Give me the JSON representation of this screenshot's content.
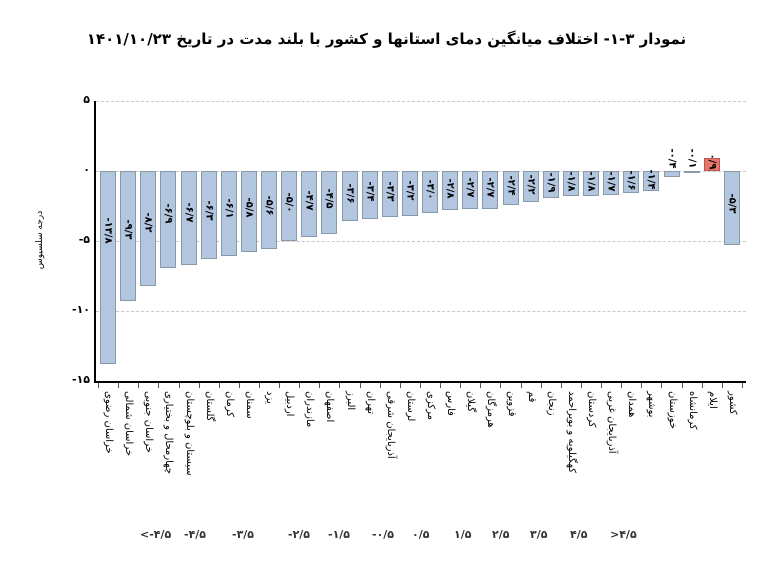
{
  "chart_data": {
    "type": "bar",
    "title": "نمودار ۳-۱- اختلاف میانگین دمای استانها و کشور با بلند مدت در تاریخ ۱۴۰۱/۱۰/۲۳",
    "xlabel": "",
    "ylabel": "درجه سلسیوس",
    "ylim": [
      -15,
      5
    ],
    "yticks": [
      5,
      0,
      -5,
      -10,
      -15
    ],
    "ytick_labels": [
      "۵",
      "۰",
      "-۵",
      "-۱۰",
      "-۱۵"
    ],
    "grid": true,
    "categories": [
      "خراسان رضوی",
      "خراسان شمالی",
      "خراسان جنوبی",
      "چهارمحال و بختیاری",
      "سیستان و بلوچستان",
      "گلستان",
      "کرمان",
      "سمنان",
      "یزد",
      "اردبیل",
      "مازندران",
      "اصفهان",
      "البرز",
      "تهران",
      "آذربایجان شرقی",
      "لرستان",
      "مرکزی",
      "فارس",
      "گیلان",
      "هرمزگان",
      "قزوین",
      "قم",
      "زنجان",
      "کهگیلویه و بویراحمد",
      "کردستان",
      "آذربایجان غربی",
      "همدان",
      "بوشهر",
      "خوزستان",
      "کرمانشاه",
      "ایلام",
      "کشور"
    ],
    "values": [
      -13.8,
      -9.3,
      -8.2,
      -6.9,
      -6.7,
      -6.3,
      -6.1,
      -5.8,
      -5.6,
      -5.0,
      -4.7,
      -4.5,
      -3.6,
      -3.4,
      -3.3,
      -3.2,
      -3.0,
      -2.8,
      -2.7,
      -2.7,
      -2.4,
      -2.2,
      -1.9,
      -1.8,
      -1.8,
      -1.7,
      -1.6,
      -1.4,
      -0.4,
      -0.1,
      0.9,
      -5.3
    ],
    "value_labels": [
      "-۱۳/۸",
      "-۹/۳",
      "-۸/۲",
      "-۶/۹",
      "-۶/۷",
      "-۶/۳",
      "-۶/۱",
      "-۵/۸",
      "-۵/۶",
      "-۵/۰",
      "-۴/۷",
      "-۴/۵",
      "-۳/۶",
      "-۳/۴",
      "-۳/۳",
      "-۳/۲",
      "-۳/۰",
      "-۲/۸",
      "-۲/۷",
      "-۲/۷",
      "-۲/۴",
      "-۲/۲",
      "-۱/۹",
      "-۱/۸",
      "-۱/۸",
      "-۱/۷",
      "-۱/۶",
      "-۱/۴",
      "-۰/۴",
      "-۰/۱",
      "۰/۹",
      "-۵/۳"
    ],
    "colors": {
      "negative": "#b3c6e0",
      "positive": "#e8776a"
    },
    "legend_scale": [
      "<-۴/۵",
      "-۴/۵",
      "-۳/۵",
      "-۲/۵",
      "-۱/۵",
      "-۰/۵",
      "۰/۵",
      "۱/۵",
      "۲/۵",
      "۳/۵",
      "۴/۵",
      ">۴/۵"
    ]
  }
}
